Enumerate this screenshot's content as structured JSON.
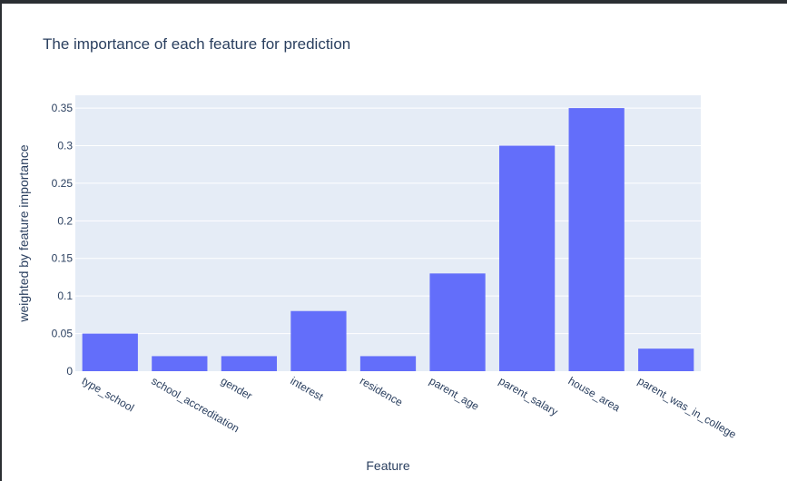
{
  "chart_data": {
    "type": "bar",
    "title": "The importance of each feature for prediction",
    "xlabel": "Feature",
    "ylabel": "weighted by feature importance",
    "categories": [
      "type_school",
      "school_accreditation",
      "gender",
      "interest",
      "residence",
      "parent_age",
      "parent_salary",
      "house_area",
      "parent_was_in_college"
    ],
    "values": [
      0.05,
      0.02,
      0.02,
      0.08,
      0.02,
      0.13,
      0.3,
      0.35,
      0.03
    ],
    "ylim": [
      0,
      0.367
    ],
    "yticks": [
      0,
      0.05,
      0.1,
      0.15,
      0.2,
      0.25,
      0.3,
      0.35
    ],
    "ytick_labels": [
      "0",
      "0.05",
      "0.1",
      "0.15",
      "0.2",
      "0.25",
      "0.3",
      "0.35"
    ],
    "grid": true,
    "legend": "none",
    "colors": {
      "bar": "#636efa",
      "plot_bg": "#e5ecf6",
      "grid": "#ffffff",
      "text": "#2a3f5f"
    }
  }
}
